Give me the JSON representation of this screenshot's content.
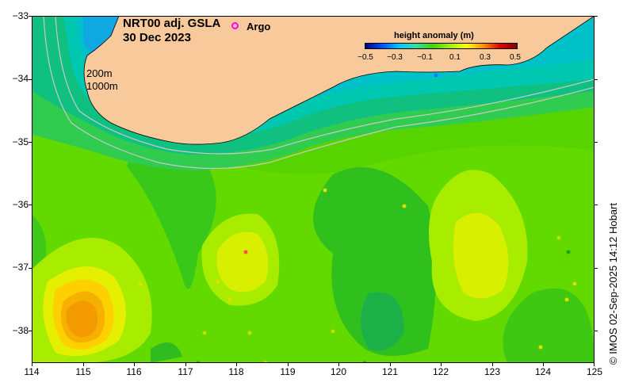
{
  "title": {
    "line1": "NRT00 adj. GSLA",
    "line2": "30 Dec 2023"
  },
  "legend": {
    "argo_label": "Argo",
    "argo_color": "#ff00ff"
  },
  "isobaths": [
    "200m",
    "1000m"
  ],
  "colorbar": {
    "title": "height anomaly (m)",
    "ticks": [
      "−0.5",
      "−0.3",
      "−0.1",
      "0.1",
      "0.3",
      "0.5"
    ],
    "colors": [
      "#00007f",
      "#0050ff",
      "#00c8ff",
      "#30e0a0",
      "#3cd800",
      "#a0f000",
      "#ffff00",
      "#ff9000",
      "#e00000",
      "#7f0000"
    ]
  },
  "axes": {
    "x_ticks": [
      "114",
      "115",
      "116",
      "117",
      "118",
      "119",
      "120",
      "121",
      "122",
      "123",
      "124",
      "125"
    ],
    "y_ticks": [
      "−33",
      "−34",
      "−35",
      "−36",
      "−37",
      "−38"
    ]
  },
  "colors": {
    "land": "#f7c99b",
    "sea_background": "#57d400"
  },
  "credit": "© IMOS 02-Sep-2025 14:12 Hobart"
}
